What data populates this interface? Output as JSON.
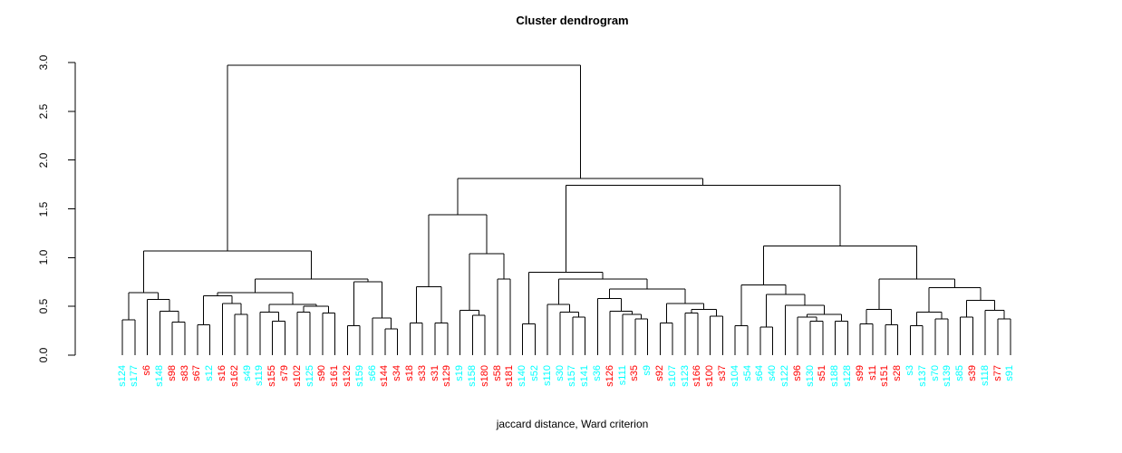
{
  "chart_data": {
    "type": "dendrogram",
    "title": "Cluster dendrogram",
    "xlabel": "jaccard distance, Ward criterion",
    "ylabel": "",
    "ylim": [
      0.0,
      3.0
    ],
    "y_ticks": [
      "0.0",
      "0.5",
      "1.0",
      "1.5",
      "2.0",
      "2.5",
      "3.0"
    ],
    "grid": false,
    "line_color": "#000000",
    "label_colors": {
      "red": "#FF0000",
      "cyan": "#00FFFF"
    },
    "leaves": [
      {
        "label": "s124",
        "color": "cyan"
      },
      {
        "label": "s177",
        "color": "cyan"
      },
      {
        "label": "s6",
        "color": "red"
      },
      {
        "label": "s148",
        "color": "cyan"
      },
      {
        "label": "s98",
        "color": "red"
      },
      {
        "label": "s83",
        "color": "red"
      },
      {
        "label": "s67",
        "color": "red"
      },
      {
        "label": "s12",
        "color": "cyan"
      },
      {
        "label": "s16",
        "color": "red"
      },
      {
        "label": "s162",
        "color": "red"
      },
      {
        "label": "s49",
        "color": "cyan"
      },
      {
        "label": "s119",
        "color": "cyan"
      },
      {
        "label": "s155",
        "color": "red"
      },
      {
        "label": "s79",
        "color": "red"
      },
      {
        "label": "s102",
        "color": "red"
      },
      {
        "label": "s125",
        "color": "cyan"
      },
      {
        "label": "s90",
        "color": "red"
      },
      {
        "label": "s161",
        "color": "red"
      },
      {
        "label": "s132",
        "color": "red"
      },
      {
        "label": "s159",
        "color": "cyan"
      },
      {
        "label": "s66",
        "color": "cyan"
      },
      {
        "label": "s144",
        "color": "red"
      },
      {
        "label": "s34",
        "color": "red"
      },
      {
        "label": "s18",
        "color": "red"
      },
      {
        "label": "s33",
        "color": "red"
      },
      {
        "label": "s31",
        "color": "red"
      },
      {
        "label": "s129",
        "color": "red"
      },
      {
        "label": "s19",
        "color": "cyan"
      },
      {
        "label": "s158",
        "color": "cyan"
      },
      {
        "label": "s180",
        "color": "red"
      },
      {
        "label": "s58",
        "color": "red"
      },
      {
        "label": "s181",
        "color": "red"
      },
      {
        "label": "s140",
        "color": "cyan"
      },
      {
        "label": "s52",
        "color": "cyan"
      },
      {
        "label": "s110",
        "color": "cyan"
      },
      {
        "label": "s30",
        "color": "cyan"
      },
      {
        "label": "s157",
        "color": "cyan"
      },
      {
        "label": "s141",
        "color": "cyan"
      },
      {
        "label": "s36",
        "color": "cyan"
      },
      {
        "label": "s126",
        "color": "red"
      },
      {
        "label": "s111",
        "color": "cyan"
      },
      {
        "label": "s35",
        "color": "red"
      },
      {
        "label": "s9",
        "color": "cyan"
      },
      {
        "label": "s92",
        "color": "red"
      },
      {
        "label": "s107",
        "color": "cyan"
      },
      {
        "label": "s123",
        "color": "cyan"
      },
      {
        "label": "s166",
        "color": "red"
      },
      {
        "label": "s100",
        "color": "red"
      },
      {
        "label": "s37",
        "color": "red"
      },
      {
        "label": "s104",
        "color": "cyan"
      },
      {
        "label": "s54",
        "color": "cyan"
      },
      {
        "label": "s64",
        "color": "cyan"
      },
      {
        "label": "s40",
        "color": "cyan"
      },
      {
        "label": "s122",
        "color": "cyan"
      },
      {
        "label": "s96",
        "color": "red"
      },
      {
        "label": "s130",
        "color": "cyan"
      },
      {
        "label": "s51",
        "color": "red"
      },
      {
        "label": "s188",
        "color": "cyan"
      },
      {
        "label": "s128",
        "color": "cyan"
      },
      {
        "label": "s99",
        "color": "red"
      },
      {
        "label": "s11",
        "color": "red"
      },
      {
        "label": "s151",
        "color": "red"
      },
      {
        "label": "s28",
        "color": "red"
      },
      {
        "label": "s3",
        "color": "cyan"
      },
      {
        "label": "s137",
        "color": "cyan"
      },
      {
        "label": "s70",
        "color": "cyan"
      },
      {
        "label": "s139",
        "color": "cyan"
      },
      {
        "label": "s85",
        "color": "cyan"
      },
      {
        "label": "s39",
        "color": "red"
      },
      {
        "label": "s118",
        "color": "cyan"
      },
      {
        "label": "s77",
        "color": "red"
      },
      {
        "label": "s91",
        "color": "cyan"
      }
    ],
    "tree": {
      "h": 2.97,
      "c": [
        {
          "h": 1.07,
          "c": [
            {
              "h": 0.64,
              "c": [
                {
                  "h": 0.36,
                  "c": [
                    "s124",
                    "s177"
                  ]
                },
                {
                  "h": 0.57,
                  "c": [
                    "s6",
                    {
                      "h": 0.45,
                      "c": [
                        "s148",
                        {
                          "h": 0.34,
                          "c": [
                            "s98",
                            "s83"
                          ]
                        }
                      ]
                    }
                  ]
                }
              ]
            },
            {
              "h": 0.78,
              "c": [
                {
                  "h": 0.64,
                  "c": [
                    {
                      "h": 0.61,
                      "c": [
                        {
                          "h": 0.31,
                          "c": [
                            "s67",
                            "s12"
                          ]
                        },
                        {
                          "h": 0.53,
                          "c": [
                            "s16",
                            {
                              "h": 0.42,
                              "c": [
                                "s162",
                                "s49"
                              ]
                            }
                          ]
                        }
                      ]
                    },
                    {
                      "h": 0.52,
                      "c": [
                        {
                          "h": 0.44,
                          "c": [
                            "s119",
                            {
                              "h": 0.35,
                              "c": [
                                "s155",
                                "s79"
                              ]
                            }
                          ]
                        },
                        {
                          "h": 0.5,
                          "c": [
                            {
                              "h": 0.44,
                              "c": [
                                "s102",
                                "s125"
                              ]
                            },
                            {
                              "h": 0.43,
                              "c": [
                                "s90",
                                "s161"
                              ]
                            }
                          ]
                        }
                      ]
                    }
                  ]
                },
                {
                  "h": 0.75,
                  "c": [
                    {
                      "h": 0.3,
                      "c": [
                        "s132",
                        "s159"
                      ]
                    },
                    {
                      "h": 0.38,
                      "c": [
                        "s66",
                        {
                          "h": 0.27,
                          "c": [
                            "s144",
                            "s34"
                          ]
                        }
                      ]
                    }
                  ]
                }
              ]
            }
          ]
        },
        {
          "h": 1.81,
          "c": [
            {
              "h": 1.44,
              "c": [
                {
                  "h": 0.7,
                  "c": [
                    {
                      "h": 0.33,
                      "c": [
                        "s18",
                        "s33"
                      ]
                    },
                    {
                      "h": 0.33,
                      "c": [
                        "s31",
                        "s129"
                      ]
                    }
                  ]
                },
                {
                  "h": 1.04,
                  "c": [
                    {
                      "h": 0.46,
                      "c": [
                        "s19",
                        {
                          "h": 0.41,
                          "c": [
                            "s158",
                            "s180"
                          ]
                        }
                      ]
                    },
                    {
                      "h": 0.78,
                      "c": [
                        "s58",
                        "s181"
                      ]
                    }
                  ]
                }
              ]
            },
            {
              "h": 1.74,
              "c": [
                {
                  "h": 0.85,
                  "c": [
                    {
                      "h": 0.32,
                      "c": [
                        "s140",
                        "s52"
                      ]
                    },
                    {
                      "h": 0.78,
                      "c": [
                        {
                          "h": 0.52,
                          "c": [
                            "s110",
                            {
                              "h": 0.44,
                              "c": [
                                "s30",
                                {
                                  "h": 0.39,
                                  "c": [
                                    "s157",
                                    "s141"
                                  ]
                                }
                              ]
                            }
                          ]
                        },
                        {
                          "h": 0.68,
                          "c": [
                            {
                              "h": 0.58,
                              "c": [
                                "s36",
                                {
                                  "h": 0.45,
                                  "c": [
                                    "s126",
                                    {
                                      "h": 0.42,
                                      "c": [
                                        "s111",
                                        {
                                          "h": 0.37,
                                          "c": [
                                            "s35",
                                            "s9"
                                          ]
                                        }
                                      ]
                                    }
                                  ]
                                }
                              ]
                            },
                            {
                              "h": 0.53,
                              "c": [
                                {
                                  "h": 0.33,
                                  "c": [
                                    "s92",
                                    "s107"
                                  ]
                                },
                                {
                                  "h": 0.47,
                                  "c": [
                                    {
                                      "h": 0.43,
                                      "c": [
                                        "s123",
                                        "s166"
                                      ]
                                    },
                                    {
                                      "h": 0.4,
                                      "c": [
                                        "s100",
                                        "s37"
                                      ]
                                    }
                                  ]
                                }
                              ]
                            }
                          ]
                        }
                      ]
                    }
                  ]
                },
                {
                  "h": 1.12,
                  "c": [
                    {
                      "h": 0.72,
                      "c": [
                        {
                          "h": 0.3,
                          "c": [
                            "s104",
                            "s54"
                          ]
                        },
                        {
                          "h": 0.62,
                          "c": [
                            {
                              "h": 0.29,
                              "c": [
                                "s64",
                                "s40"
                              ]
                            },
                            {
                              "h": 0.51,
                              "c": [
                                "s122",
                                {
                                  "h": 0.42,
                                  "c": [
                                    {
                                      "h": 0.39,
                                      "c": [
                                        "s96",
                                        {
                                          "h": 0.35,
                                          "c": [
                                            "s130",
                                            "s51"
                                          ]
                                        }
                                      ]
                                    },
                                    {
                                      "h": 0.35,
                                      "c": [
                                        "s188",
                                        "s128"
                                      ]
                                    }
                                  ]
                                }
                              ]
                            }
                          ]
                        }
                      ]
                    },
                    {
                      "h": 0.78,
                      "c": [
                        {
                          "h": 0.47,
                          "c": [
                            {
                              "h": 0.32,
                              "c": [
                                "s99",
                                "s11"
                              ]
                            },
                            {
                              "h": 0.31,
                              "c": [
                                "s151",
                                "s28"
                              ]
                            }
                          ]
                        },
                        {
                          "h": 0.69,
                          "c": [
                            {
                              "h": 0.44,
                              "c": [
                                {
                                  "h": 0.3,
                                  "c": [
                                    "s3",
                                    "s137"
                                  ]
                                },
                                {
                                  "h": 0.37,
                                  "c": [
                                    "s70",
                                    "s139"
                                  ]
                                }
                              ]
                            },
                            {
                              "h": 0.56,
                              "c": [
                                {
                                  "h": 0.39,
                                  "c": [
                                    "s85",
                                    "s39"
                                  ]
                                },
                                {
                                  "h": 0.46,
                                  "c": [
                                    "s118",
                                    {
                                      "h": 0.37,
                                      "c": [
                                        "s77",
                                        "s91"
                                      ]
                                    }
                                  ]
                                }
                              ]
                            }
                          ]
                        }
                      ]
                    }
                  ]
                }
              ]
            }
          ]
        }
      ]
    }
  }
}
